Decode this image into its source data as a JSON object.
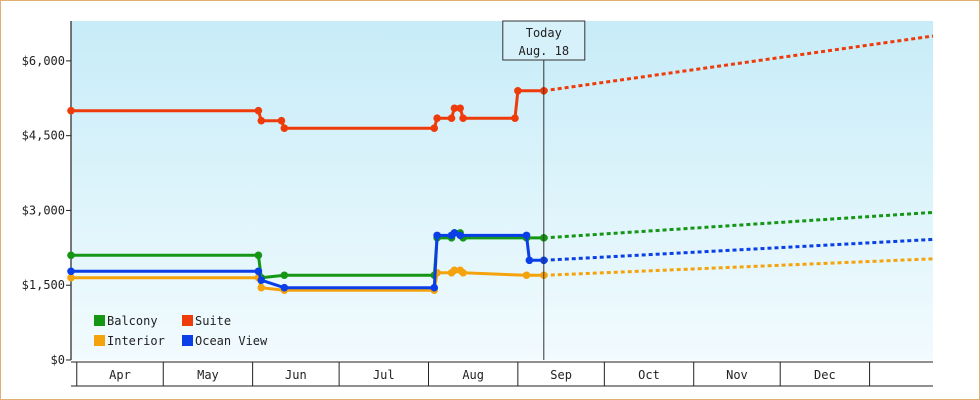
{
  "chart_data": {
    "type": "line",
    "title": "",
    "xlabel": "",
    "ylabel": "",
    "ylim": [
      0,
      6800
    ],
    "y_ticks": [
      {
        "value": 0,
        "label": "$0"
      },
      {
        "value": 1500,
        "label": "$1,500"
      },
      {
        "value": 3000,
        "label": "$3,000"
      },
      {
        "value": 4500,
        "label": "$4,500"
      },
      {
        "value": 6000,
        "label": "$6,000"
      }
    ],
    "x_range": [
      "2000-03-07",
      "2000-12-31"
    ],
    "months": [
      {
        "label": "Apr",
        "start": "2000-03-09",
        "end": "2000-04-08"
      },
      {
        "label": "May",
        "start": "2000-04-08",
        "end": "2000-05-09"
      },
      {
        "label": "Jun",
        "start": "2000-05-09",
        "end": "2000-06-08"
      },
      {
        "label": "Jul",
        "start": "2000-06-08",
        "end": "2000-07-09"
      },
      {
        "label": "Aug",
        "start": "2000-07-09",
        "end": "2000-08-09"
      },
      {
        "label": "Sep",
        "start": "2000-08-09",
        "end": "2000-09-08"
      },
      {
        "label": "Oct",
        "start": "2000-09-08",
        "end": "2000-10-09"
      },
      {
        "label": "Nov",
        "start": "2000-10-09",
        "end": "2000-11-08"
      },
      {
        "label": "Dec",
        "start": "2000-11-08",
        "end": "2000-12-09"
      },
      {
        "label": "",
        "start": "2000-12-09",
        "end": "2000-12-31"
      }
    ],
    "today": {
      "line1": "Today",
      "line2": "Aug. 18",
      "date": "2000-08-18"
    },
    "legend": {
      "position": "bottom-left"
    },
    "series": [
      {
        "name": "Balcony",
        "color": "#159615",
        "points": [
          {
            "x": "2000-03-07",
            "y": 2100
          },
          {
            "x": "2000-05-11",
            "y": 2100
          },
          {
            "x": "2000-05-12",
            "y": 1650
          },
          {
            "x": "2000-05-20",
            "y": 1700
          },
          {
            "x": "2000-07-11",
            "y": 1700
          },
          {
            "x": "2000-07-12",
            "y": 2450
          },
          {
            "x": "2000-07-17",
            "y": 2450
          },
          {
            "x": "2000-07-18",
            "y": 2550
          },
          {
            "x": "2000-07-20",
            "y": 2550
          },
          {
            "x": "2000-07-21",
            "y": 2450
          },
          {
            "x": "2000-08-12",
            "y": 2450
          },
          {
            "x": "2000-08-18",
            "y": 2450
          }
        ],
        "forecast": [
          {
            "x": "2000-08-18",
            "y": 2450
          },
          {
            "x": "2000-12-31",
            "y": 2960
          }
        ]
      },
      {
        "name": "Suite",
        "color": "#ee3b0a",
        "points": [
          {
            "x": "2000-03-07",
            "y": 5000
          },
          {
            "x": "2000-05-11",
            "y": 5000
          },
          {
            "x": "2000-05-12",
            "y": 4800
          },
          {
            "x": "2000-05-19",
            "y": 4800
          },
          {
            "x": "2000-05-20",
            "y": 4650
          },
          {
            "x": "2000-07-11",
            "y": 4650
          },
          {
            "x": "2000-07-12",
            "y": 4850
          },
          {
            "x": "2000-07-17",
            "y": 4850
          },
          {
            "x": "2000-07-18",
            "y": 5050
          },
          {
            "x": "2000-07-20",
            "y": 5050
          },
          {
            "x": "2000-07-21",
            "y": 4850
          },
          {
            "x": "2000-08-08",
            "y": 4850
          },
          {
            "x": "2000-08-09",
            "y": 5400
          },
          {
            "x": "2000-08-18",
            "y": 5400
          }
        ],
        "forecast": [
          {
            "x": "2000-08-18",
            "y": 5400
          },
          {
            "x": "2000-12-31",
            "y": 6500
          }
        ]
      },
      {
        "name": "Interior",
        "color": "#f5a30c",
        "points": [
          {
            "x": "2000-03-07",
            "y": 1650
          },
          {
            "x": "2000-05-11",
            "y": 1650
          },
          {
            "x": "2000-05-12",
            "y": 1450
          },
          {
            "x": "2000-05-20",
            "y": 1400
          },
          {
            "x": "2000-07-11",
            "y": 1400
          },
          {
            "x": "2000-07-12",
            "y": 1750
          },
          {
            "x": "2000-07-17",
            "y": 1750
          },
          {
            "x": "2000-07-18",
            "y": 1800
          },
          {
            "x": "2000-07-20",
            "y": 1800
          },
          {
            "x": "2000-07-21",
            "y": 1750
          },
          {
            "x": "2000-08-12",
            "y": 1700
          },
          {
            "x": "2000-08-18",
            "y": 1700
          }
        ],
        "forecast": [
          {
            "x": "2000-08-18",
            "y": 1700
          },
          {
            "x": "2000-12-31",
            "y": 2030
          }
        ]
      },
      {
        "name": "Ocean View",
        "color": "#0a3fe8",
        "points": [
          {
            "x": "2000-03-07",
            "y": 1780
          },
          {
            "x": "2000-05-11",
            "y": 1780
          },
          {
            "x": "2000-05-12",
            "y": 1600
          },
          {
            "x": "2000-05-20",
            "y": 1450
          },
          {
            "x": "2000-07-11",
            "y": 1450
          },
          {
            "x": "2000-07-12",
            "y": 2500
          },
          {
            "x": "2000-07-17",
            "y": 2500
          },
          {
            "x": "2000-07-18",
            "y": 2550
          },
          {
            "x": "2000-07-20",
            "y": 2500
          },
          {
            "x": "2000-08-12",
            "y": 2500
          },
          {
            "x": "2000-08-13",
            "y": 2000
          },
          {
            "x": "2000-08-18",
            "y": 2000
          }
        ],
        "forecast": [
          {
            "x": "2000-08-18",
            "y": 2000
          },
          {
            "x": "2000-12-31",
            "y": 2420
          }
        ]
      }
    ],
    "colors": {
      "bg_top": "#c7ecf8",
      "bg_bottom": "#f2fbfe",
      "frame": "#e0b070",
      "axis": "#222222"
    }
  }
}
